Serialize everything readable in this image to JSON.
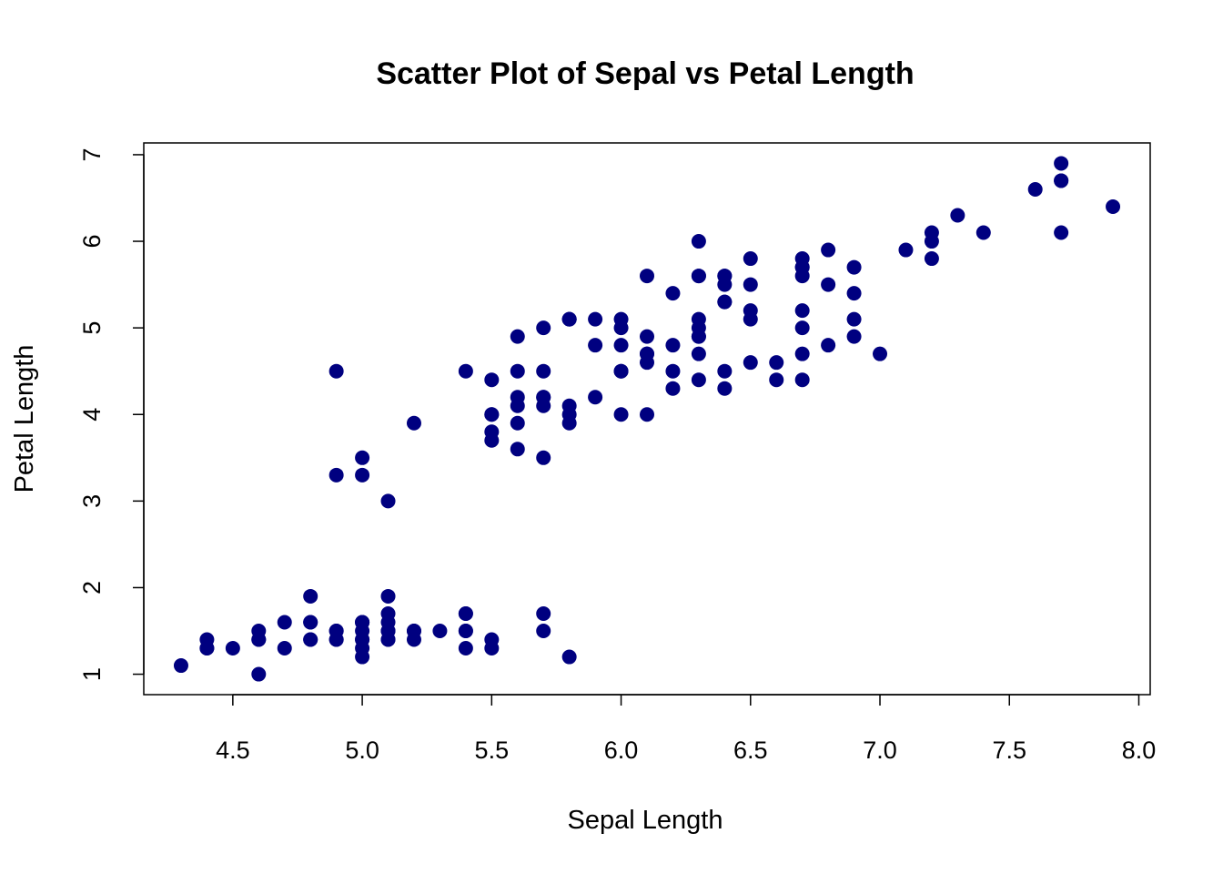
{
  "chart_data": {
    "type": "scatter",
    "title": "Scatter Plot of Sepal vs Petal Length",
    "xlabel": "Sepal Length",
    "ylabel": "Petal Length",
    "xlim": [
      4.3,
      7.9
    ],
    "ylim": [
      1.0,
      6.9
    ],
    "x_ticks": [
      4.5,
      5.0,
      5.5,
      6.0,
      6.5,
      7.0,
      7.5,
      8.0
    ],
    "x_tick_labels": [
      "4.5",
      "5.0",
      "5.5",
      "6.0",
      "6.5",
      "7.0",
      "7.5",
      "8.0"
    ],
    "y_ticks": [
      1,
      2,
      3,
      4,
      5,
      6,
      7
    ],
    "y_tick_labels": [
      "1",
      "2",
      "3",
      "4",
      "5",
      "6",
      "7"
    ],
    "grid": false,
    "legend": "none",
    "marker_color": "#000080",
    "points": [
      [
        5.1,
        1.4
      ],
      [
        4.9,
        1.4
      ],
      [
        4.7,
        1.3
      ],
      [
        4.6,
        1.5
      ],
      [
        5.0,
        1.4
      ],
      [
        5.4,
        1.7
      ],
      [
        4.6,
        1.4
      ],
      [
        5.0,
        1.5
      ],
      [
        4.4,
        1.4
      ],
      [
        4.9,
        1.5
      ],
      [
        5.4,
        1.5
      ],
      [
        4.8,
        1.6
      ],
      [
        4.8,
        1.4
      ],
      [
        4.3,
        1.1
      ],
      [
        5.8,
        1.2
      ],
      [
        5.7,
        1.5
      ],
      [
        5.4,
        1.3
      ],
      [
        5.1,
        1.4
      ],
      [
        5.7,
        1.7
      ],
      [
        5.1,
        1.5
      ],
      [
        5.4,
        1.7
      ],
      [
        5.1,
        1.5
      ],
      [
        4.6,
        1.0
      ],
      [
        5.1,
        1.7
      ],
      [
        4.8,
        1.9
      ],
      [
        5.0,
        1.6
      ],
      [
        5.0,
        1.6
      ],
      [
        5.2,
        1.5
      ],
      [
        5.2,
        1.4
      ],
      [
        4.7,
        1.6
      ],
      [
        4.8,
        1.6
      ],
      [
        5.4,
        1.5
      ],
      [
        5.2,
        1.5
      ],
      [
        5.5,
        1.4
      ],
      [
        4.9,
        1.5
      ],
      [
        5.0,
        1.2
      ],
      [
        5.5,
        1.3
      ],
      [
        4.9,
        1.4
      ],
      [
        4.4,
        1.3
      ],
      [
        5.1,
        1.5
      ],
      [
        5.0,
        1.3
      ],
      [
        4.5,
        1.3
      ],
      [
        4.4,
        1.3
      ],
      [
        5.0,
        1.6
      ],
      [
        5.1,
        1.9
      ],
      [
        4.8,
        1.4
      ],
      [
        5.1,
        1.6
      ],
      [
        4.6,
        1.4
      ],
      [
        5.3,
        1.5
      ],
      [
        5.0,
        1.4
      ],
      [
        7.0,
        4.7
      ],
      [
        6.4,
        4.5
      ],
      [
        6.9,
        4.9
      ],
      [
        5.5,
        4.0
      ],
      [
        6.5,
        4.6
      ],
      [
        5.7,
        4.5
      ],
      [
        6.3,
        4.7
      ],
      [
        4.9,
        3.3
      ],
      [
        6.6,
        4.6
      ],
      [
        5.2,
        3.9
      ],
      [
        5.0,
        3.5
      ],
      [
        5.9,
        4.2
      ],
      [
        6.0,
        4.0
      ],
      [
        6.1,
        4.7
      ],
      [
        5.6,
        3.6
      ],
      [
        6.7,
        4.4
      ],
      [
        5.6,
        4.5
      ],
      [
        5.8,
        4.1
      ],
      [
        6.2,
        4.5
      ],
      [
        5.6,
        3.9
      ],
      [
        5.9,
        4.8
      ],
      [
        6.1,
        4.0
      ],
      [
        6.3,
        4.9
      ],
      [
        6.1,
        4.7
      ],
      [
        6.4,
        4.3
      ],
      [
        6.6,
        4.4
      ],
      [
        6.8,
        4.8
      ],
      [
        6.7,
        5.0
      ],
      [
        6.0,
        4.5
      ],
      [
        5.7,
        3.5
      ],
      [
        5.5,
        3.8
      ],
      [
        5.5,
        3.7
      ],
      [
        5.8,
        3.9
      ],
      [
        6.0,
        5.1
      ],
      [
        5.4,
        4.5
      ],
      [
        6.0,
        4.5
      ],
      [
        6.7,
        4.7
      ],
      [
        6.3,
        4.4
      ],
      [
        5.6,
        4.1
      ],
      [
        5.5,
        4.0
      ],
      [
        5.5,
        4.4
      ],
      [
        6.1,
        4.6
      ],
      [
        5.8,
        4.0
      ],
      [
        5.0,
        3.3
      ],
      [
        5.6,
        4.2
      ],
      [
        5.7,
        4.2
      ],
      [
        5.7,
        4.2
      ],
      [
        6.2,
        4.3
      ],
      [
        5.1,
        3.0
      ],
      [
        5.7,
        4.1
      ],
      [
        6.3,
        6.0
      ],
      [
        5.8,
        5.1
      ],
      [
        7.1,
        5.9
      ],
      [
        6.3,
        5.6
      ],
      [
        6.5,
        5.8
      ],
      [
        7.6,
        6.6
      ],
      [
        4.9,
        4.5
      ],
      [
        7.3,
        6.3
      ],
      [
        6.7,
        5.8
      ],
      [
        7.2,
        6.1
      ],
      [
        6.5,
        5.1
      ],
      [
        6.4,
        5.3
      ],
      [
        6.8,
        5.5
      ],
      [
        5.7,
        5.0
      ],
      [
        5.8,
        5.1
      ],
      [
        6.4,
        5.3
      ],
      [
        6.5,
        5.5
      ],
      [
        7.7,
        6.7
      ],
      [
        7.7,
        6.9
      ],
      [
        6.0,
        5.0
      ],
      [
        6.9,
        5.7
      ],
      [
        5.6,
        4.9
      ],
      [
        7.7,
        6.7
      ],
      [
        6.3,
        4.9
      ],
      [
        6.7,
        5.7
      ],
      [
        7.2,
        6.0
      ],
      [
        6.2,
        4.8
      ],
      [
        6.1,
        4.9
      ],
      [
        6.4,
        5.6
      ],
      [
        7.2,
        5.8
      ],
      [
        7.4,
        6.1
      ],
      [
        7.9,
        6.4
      ],
      [
        6.4,
        5.6
      ],
      [
        6.3,
        5.1
      ],
      [
        6.1,
        5.6
      ],
      [
        7.7,
        6.1
      ],
      [
        6.3,
        5.6
      ],
      [
        6.4,
        5.5
      ],
      [
        6.0,
        4.8
      ],
      [
        6.9,
        5.4
      ],
      [
        6.7,
        5.6
      ],
      [
        6.9,
        5.1
      ],
      [
        5.8,
        5.1
      ],
      [
        6.8,
        5.9
      ],
      [
        6.7,
        5.7
      ],
      [
        6.7,
        5.2
      ],
      [
        6.3,
        5.0
      ],
      [
        6.5,
        5.2
      ],
      [
        6.2,
        5.4
      ],
      [
        5.9,
        5.1
      ]
    ]
  }
}
